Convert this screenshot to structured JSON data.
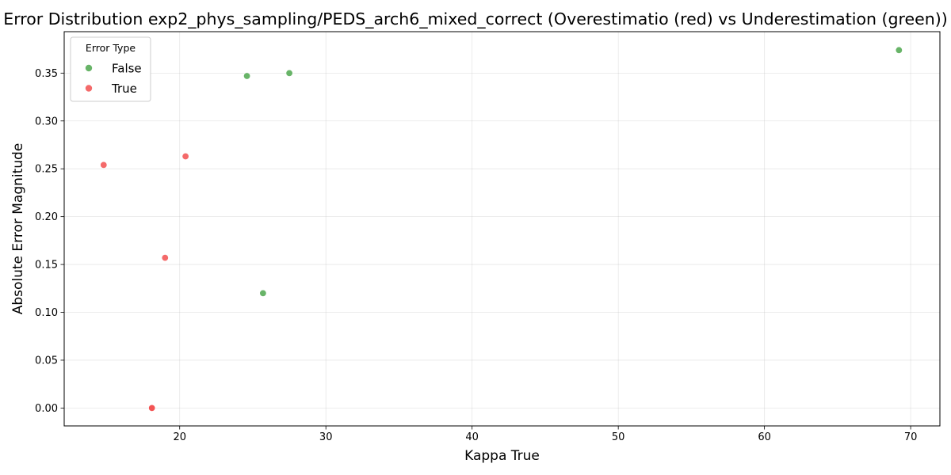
{
  "chart_data": {
    "type": "scatter",
    "title": "Error Distribution exp2_phys_sampling/PEDS_arch6_mixed_correct (Overestimatio (red) vs Underestimation (green))",
    "xlabel": "Kappa True",
    "ylabel": "Absolute Error Magnitude",
    "xlim": [
      12.1,
      72.0
    ],
    "ylim": [
      -0.0187,
      0.3933
    ],
    "xticks": [
      "20",
      "30",
      "40",
      "50",
      "60",
      "70"
    ],
    "yticks": [
      "0.00",
      "0.05",
      "0.10",
      "0.15",
      "0.20",
      "0.25",
      "0.30",
      "0.35"
    ],
    "grid": true,
    "legend": {
      "title": "Error Type",
      "placement": "top-left",
      "entries": [
        "False",
        "True"
      ]
    },
    "series": [
      {
        "name": "False",
        "color": "#4da74d",
        "points": [
          {
            "x": 24.6,
            "y": 0.347
          },
          {
            "x": 27.5,
            "y": 0.35
          },
          {
            "x": 25.7,
            "y": 0.12
          },
          {
            "x": 69.2,
            "y": 0.374
          }
        ]
      },
      {
        "name": "True",
        "color": "#f25050",
        "points": [
          {
            "x": 14.8,
            "y": 0.254
          },
          {
            "x": 20.4,
            "y": 0.263
          },
          {
            "x": 19.0,
            "y": 0.157
          },
          {
            "x": 18.1,
            "y": 0.0
          },
          {
            "x": 18.1,
            "y": 0.0
          }
        ]
      }
    ]
  }
}
